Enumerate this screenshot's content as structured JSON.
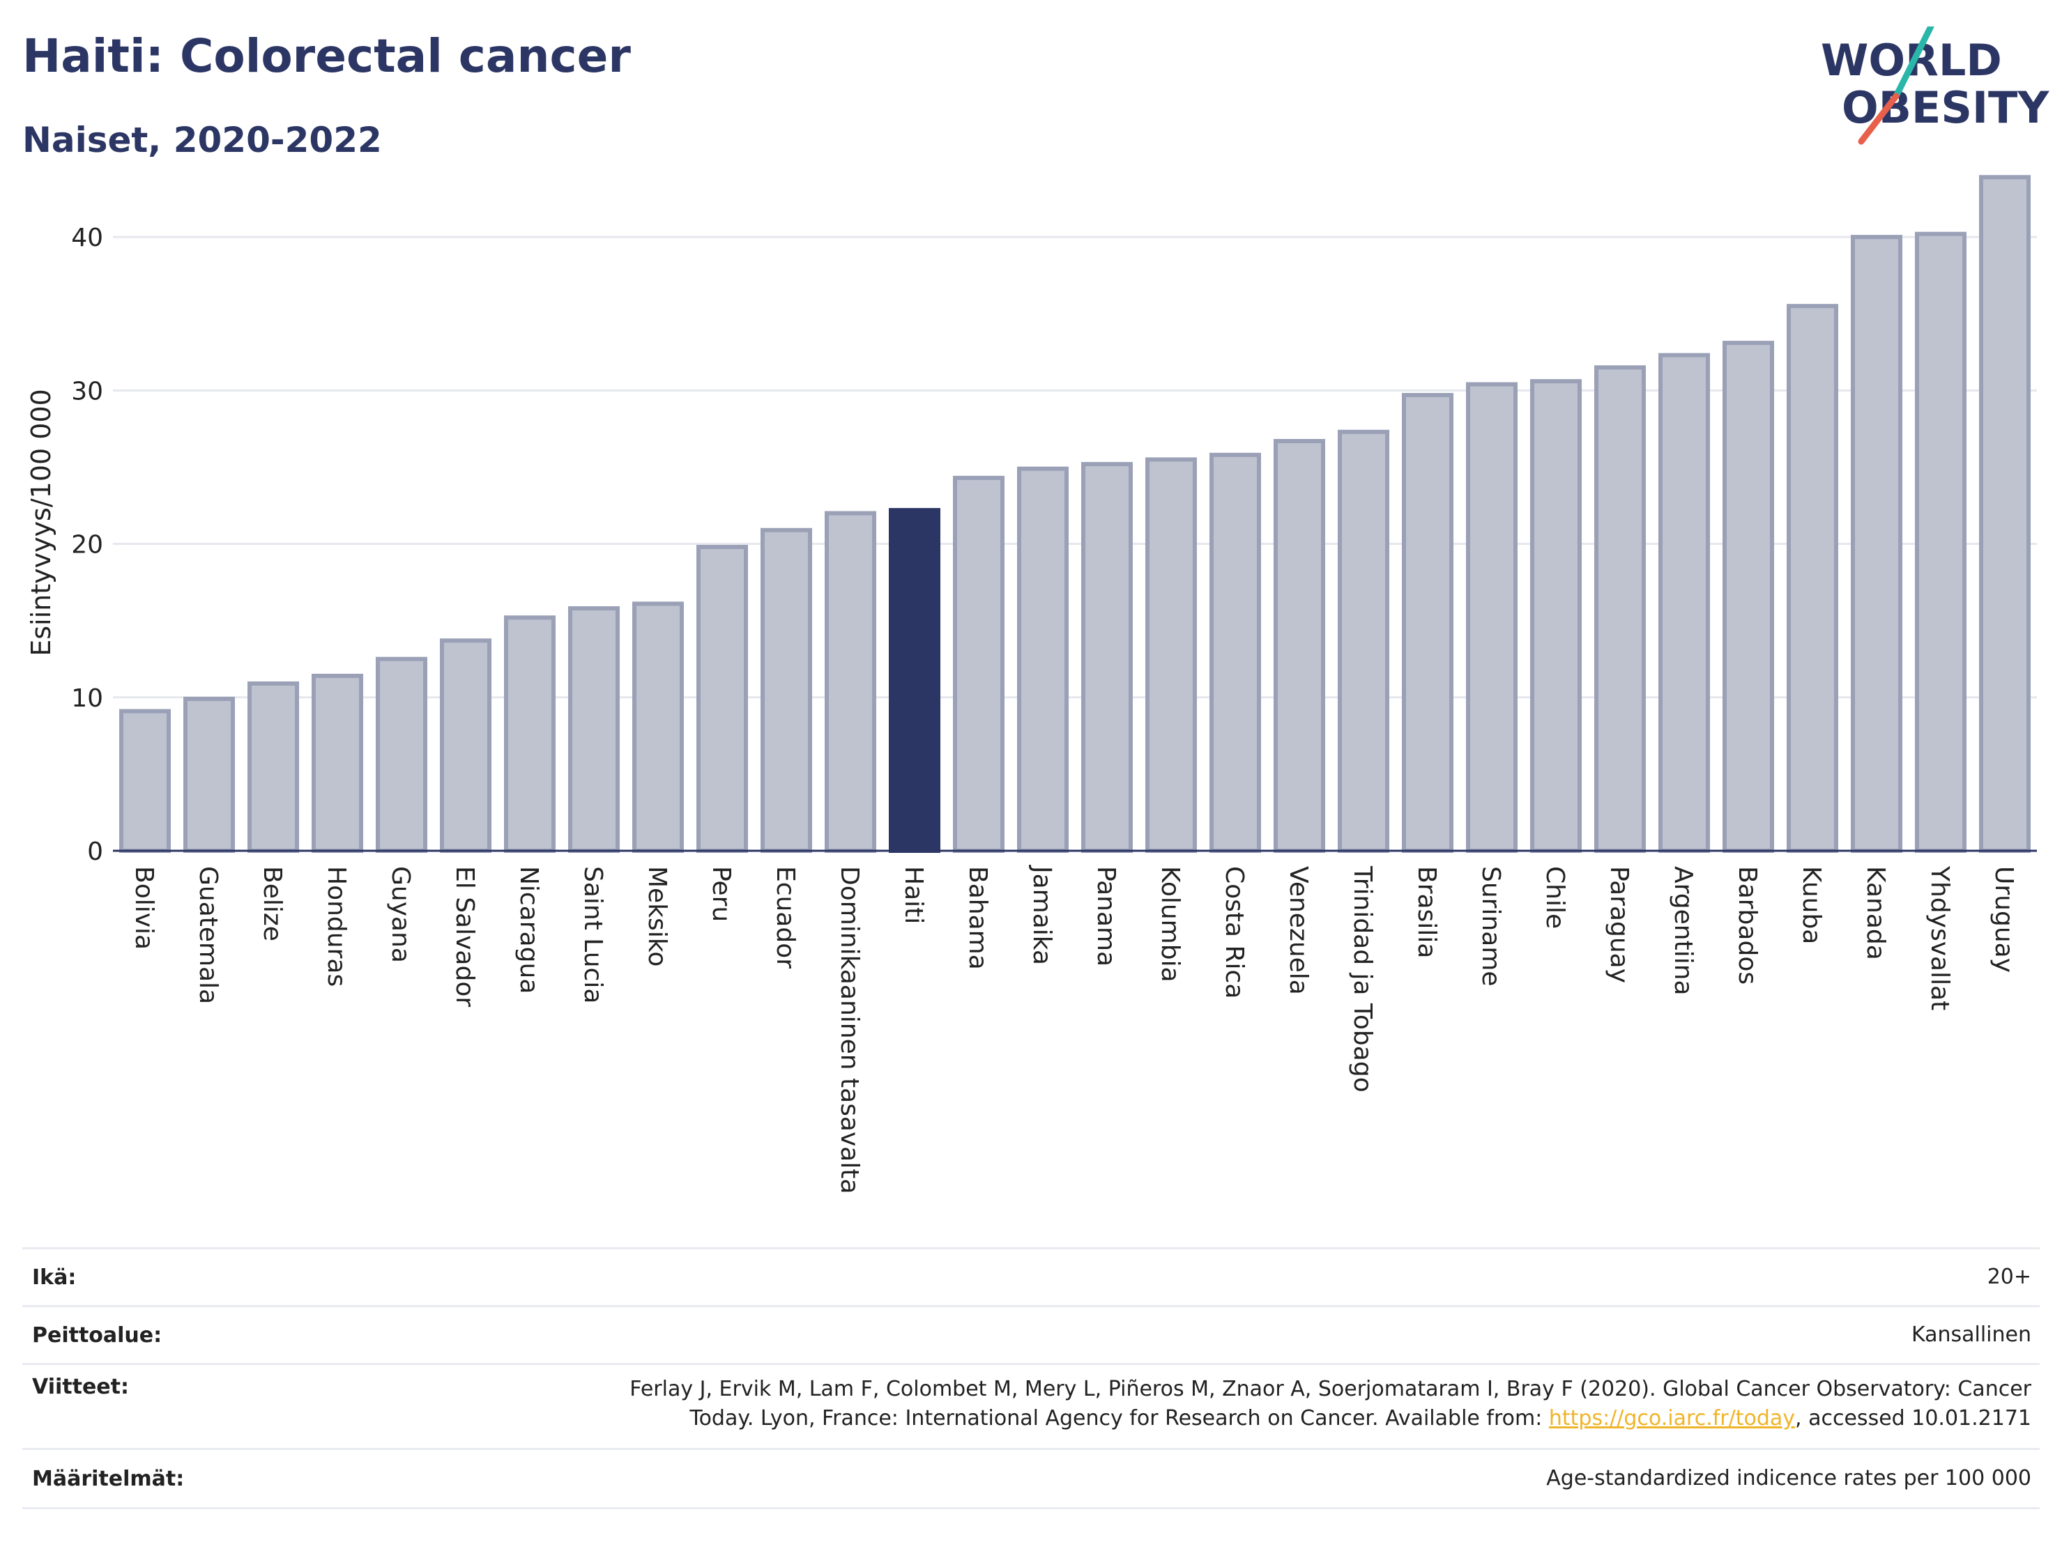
{
  "header": {
    "title": "Haiti: Colorectal cancer",
    "subtitle": "Naiset, 2020-2022"
  },
  "logo": {
    "line1": "WORLD",
    "line2": "OBESITY",
    "text_color": "#2c3664",
    "slash_colors": [
      "#2ab7a9",
      "#e8604c"
    ]
  },
  "chart_data": {
    "type": "bar",
    "title": "Haiti: Colorectal cancer",
    "subtitle": "Naiset, 2020-2022",
    "ylabel": "Esiintyvyys/100 000",
    "xlabel": "",
    "ylim": [
      0,
      45
    ],
    "yticks": [
      0,
      10,
      20,
      30,
      40
    ],
    "grid": true,
    "highlight": "Haiti",
    "bar_color": "#bfc3d0",
    "bar_edge_color": "#9aa0b6",
    "highlight_color": "#2c3664",
    "categories": [
      "Bolivia",
      "Guatemala",
      "Belize",
      "Honduras",
      "Guyana",
      "El Salvador",
      "Nicaragua",
      "Saint Lucia",
      "Meksiko",
      "Peru",
      "Ecuador",
      "Dominikaaninen tasavalta",
      "Haiti",
      "Bahama",
      "Jamaika",
      "Panama",
      "Kolumbia",
      "Costa Rica",
      "Venezuela",
      "Trinidad ja Tobago",
      "Brasilia",
      "Suriname",
      "Chile",
      "Paraguay",
      "Argentiina",
      "Barbados",
      "Kuuba",
      "Kanada",
      "Yhdysvallat",
      "Uruguay"
    ],
    "values": [
      9.1,
      9.9,
      10.9,
      11.4,
      12.5,
      13.7,
      15.2,
      15.8,
      16.1,
      19.8,
      20.9,
      22.0,
      22.2,
      24.3,
      24.9,
      25.2,
      25.5,
      25.8,
      26.7,
      27.3,
      29.7,
      30.4,
      30.6,
      31.5,
      32.3,
      33.1,
      35.5,
      40.0,
      40.2,
      43.9
    ]
  },
  "meta": {
    "age_label": "Ikä:",
    "age_value": "20+",
    "scope_label": "Peittoalue:",
    "scope_value": "Kansallinen",
    "refs_label": "Viitteet:",
    "refs_line1": "Ferlay J, Ervik M, Lam F, Colombet M, Mery L, Piñeros M, Znaor A, Soerjomataram I, Bray F (2020). Global Cancer Observatory: Cancer",
    "refs_line2_pre": "Today. Lyon, France: International Agency for Research on Cancer. Available from: ",
    "refs_link": "https://gco.iarc.fr/today",
    "refs_line2_post": ", accessed 10.01.2171",
    "defs_label": "Määritelmät:",
    "defs_value": "Age-standardized indicence rates per 100 000"
  }
}
